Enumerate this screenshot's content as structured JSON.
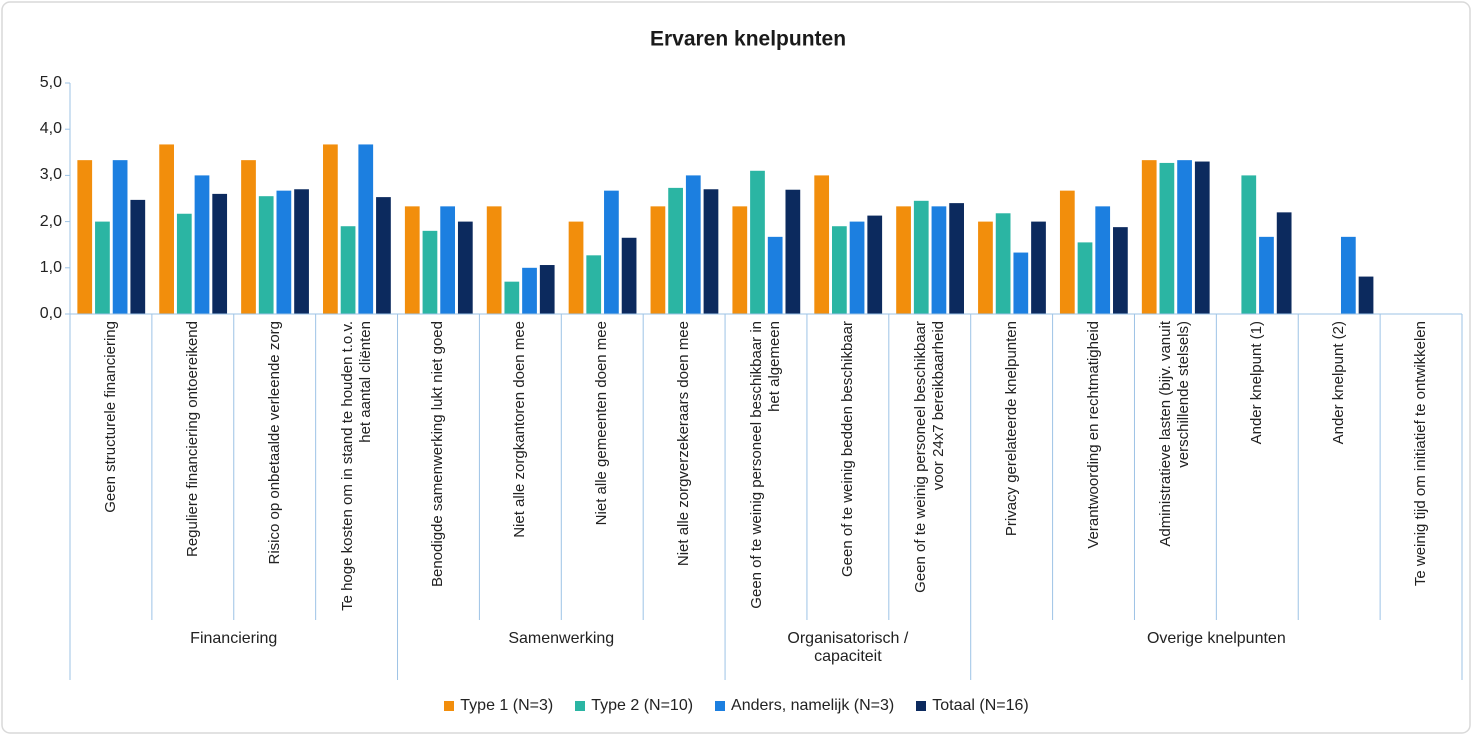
{
  "chart_data": {
    "type": "bar",
    "title": "Ervaren knelpunten",
    "groups": [
      {
        "name": "Financiering",
        "categories": [
          "Geen structurele financiering",
          "Reguliere financiering ontoereikend",
          "Risico op onbetaalde verleende zorg",
          "Te hoge kosten om in stand te houden t.o.v. het aantal cliënten"
        ]
      },
      {
        "name": "Samenwerking",
        "categories": [
          "Benodigde samenwerking lukt niet goed",
          "Niet alle zorgkantoren doen mee",
          "Niet alle gemeenten doen mee",
          "Niet alle zorgverzekeraars doen mee"
        ]
      },
      {
        "name": "Organisatorisch / capaciteit",
        "categories": [
          "Geen of te weinig personeel beschikbaar in het algemeen",
          "Geen of te weinig bedden beschikbaar",
          "Geen of te weinig personeel beschikbaar voor 24x7 bereikbaarheid"
        ]
      },
      {
        "name": "Overige knelpunten",
        "categories": [
          "Privacy gerelateerde knelpunten",
          "Verantwoording en rechtmatigheid",
          "Administratieve lasten (bijv. vanuit verschillende stelsels)",
          "Ander knelpunt (1)",
          "Ander knelpunt (2)",
          "Te weinig tijd om initiatief te ontwikkelen"
        ]
      }
    ],
    "series": [
      {
        "name": "Type 1 (N=3)",
        "color": "#f28e0c",
        "values": [
          3.33,
          3.67,
          3.33,
          3.67,
          2.33,
          2.33,
          2.0,
          2.33,
          2.33,
          3.0,
          2.33,
          2.0,
          2.67,
          3.33,
          null,
          null,
          null
        ]
      },
      {
        "name": "Type 2 (N=10)",
        "color": "#2bb5a3",
        "values": [
          2.0,
          2.17,
          2.55,
          1.9,
          1.8,
          0.7,
          1.27,
          2.73,
          3.1,
          1.9,
          2.45,
          2.18,
          1.55,
          3.27,
          3.0,
          null,
          null
        ]
      },
      {
        "name": "Anders, namelijk (N=3)",
        "color": "#1c7fe0",
        "values": [
          3.33,
          3.0,
          2.67,
          3.67,
          2.33,
          1.0,
          2.67,
          3.0,
          1.67,
          2.0,
          2.33,
          1.33,
          2.33,
          3.33,
          1.67,
          1.67,
          null
        ]
      },
      {
        "name": "Totaal (N=16)",
        "color": "#0c2a5e",
        "values": [
          2.47,
          2.6,
          2.7,
          2.53,
          2.0,
          1.06,
          1.65,
          2.7,
          2.69,
          2.13,
          2.4,
          2.0,
          1.88,
          3.3,
          2.2,
          0.81,
          null
        ]
      }
    ],
    "ylim": [
      0,
      5
    ],
    "yticks": [
      {
        "value": 0,
        "label": "0,0"
      },
      {
        "value": 1,
        "label": "1,0"
      },
      {
        "value": 2,
        "label": "2,0"
      },
      {
        "value": 3,
        "label": "3,0"
      },
      {
        "value": 4,
        "label": "4,0"
      },
      {
        "value": 5,
        "label": "5,0"
      }
    ],
    "legend": "bottom"
  }
}
